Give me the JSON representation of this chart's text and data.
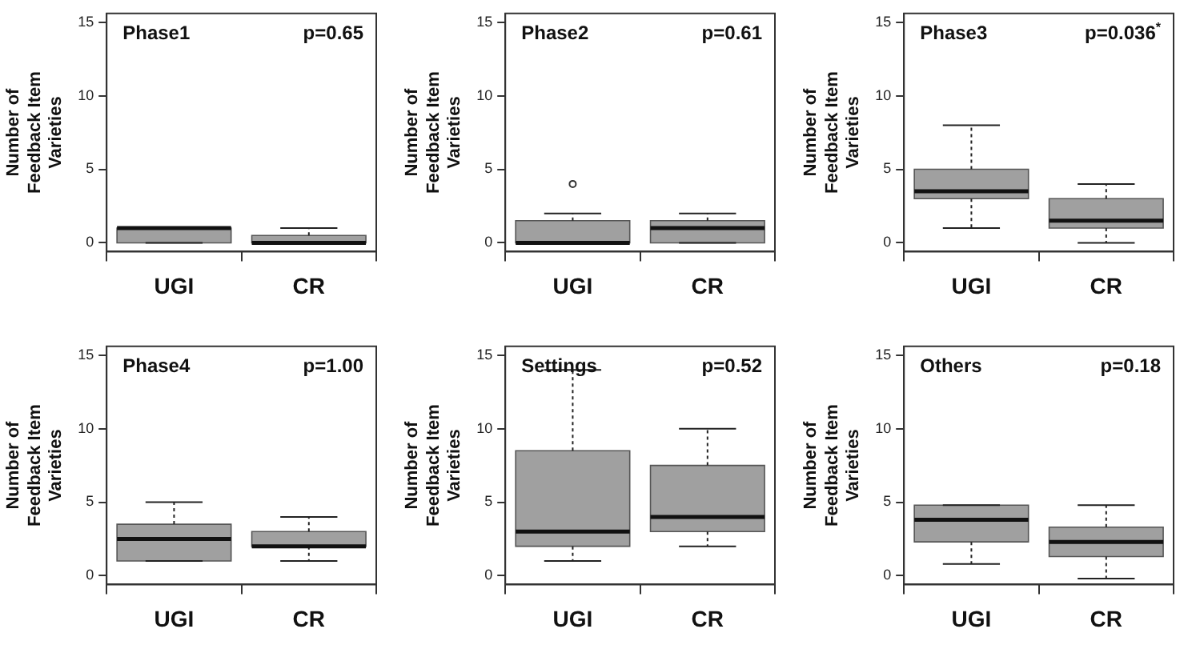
{
  "chart_data": [
    {
      "type": "box",
      "title": "Phase1",
      "annotations": [
        "p=0.65"
      ],
      "ylabel": "Number of Feedback Item Varieties",
      "categories": [
        "UGI",
        "CR"
      ],
      "color": "#a0a0a0",
      "ylim": [
        -0.6,
        15.6
      ],
      "yticks": [
        0,
        5,
        10,
        15
      ],
      "grid": false,
      "boxes": [
        {
          "low": 0,
          "q1": 0,
          "median": 1,
          "q3": 1,
          "high": 1
        },
        {
          "low": 0,
          "q1": 0,
          "median": 0,
          "q3": 0.5,
          "high": 1
        }
      ]
    },
    {
      "type": "box",
      "title": "Phase2",
      "annotations": [
        "p=0.61"
      ],
      "ylabel": "Number of Feedback Item Varieties",
      "categories": [
        "UGI",
        "CR"
      ],
      "color": "#a0a0a0",
      "ylim": [
        -0.6,
        15.6
      ],
      "yticks": [
        0,
        5,
        10,
        15
      ],
      "grid": false,
      "boxes": [
        {
          "low": 0,
          "q1": 0,
          "median": 0,
          "q3": 1.5,
          "high": 2,
          "outliers": [
            4
          ]
        },
        {
          "low": 0,
          "q1": 0,
          "median": 1,
          "q3": 1.5,
          "high": 2
        }
      ]
    },
    {
      "type": "box",
      "title": "Phase3",
      "annotations": [
        "p=0.036$^{*}$"
      ],
      "ylabel": "Number of Feedback Item Varieties",
      "categories": [
        "UGI",
        "CR"
      ],
      "color": "#a0a0a0",
      "ylim": [
        -0.6,
        15.6
      ],
      "yticks": [
        0,
        5,
        10,
        15
      ],
      "grid": false,
      "boxes": [
        {
          "low": 1,
          "q1": 3,
          "median": 3.5,
          "q3": 5,
          "high": 8
        },
        {
          "low": 0,
          "q1": 1,
          "median": 1.5,
          "q3": 3,
          "high": 4
        }
      ]
    },
    {
      "type": "box",
      "title": "Phase4",
      "annotations": [
        "p=1.00"
      ],
      "ylabel": "Number of Feedback Item Varieties",
      "categories": [
        "UGI",
        "CR"
      ],
      "color": "#a0a0a0",
      "ylim": [
        -0.6,
        15.6
      ],
      "yticks": [
        0,
        5,
        10,
        15
      ],
      "grid": false,
      "boxes": [
        {
          "low": 1,
          "q1": 1,
          "median": 2.5,
          "q3": 3.5,
          "high": 5
        },
        {
          "low": 1,
          "q1": 2,
          "median": 2,
          "q3": 3,
          "high": 4
        }
      ]
    },
    {
      "type": "box",
      "title": "Settings",
      "annotations": [
        "p=0.52"
      ],
      "ylabel": "Number of Feedback Item Varieties",
      "categories": [
        "UGI",
        "CR"
      ],
      "color": "#a0a0a0",
      "ylim": [
        -0.6,
        15.6
      ],
      "yticks": [
        0,
        5,
        10,
        15
      ],
      "grid": false,
      "boxes": [
        {
          "low": 1,
          "q1": 2,
          "median": 3,
          "q3": 8.5,
          "high": 14
        },
        {
          "low": 2,
          "q1": 3,
          "median": 4,
          "q3": 7.5,
          "high": 10
        }
      ]
    },
    {
      "type": "box",
      "title": "Others",
      "annotations": [
        "p=0.18"
      ],
      "ylabel": "Number of Feedback Item Varieties",
      "categories": [
        "UGI",
        "CR"
      ],
      "color": "#a0a0a0",
      "ylim": [
        -0.6,
        15.6
      ],
      "yticks": [
        0,
        5,
        10,
        15
      ],
      "grid": false,
      "boxes": [
        {
          "low": 0.8,
          "q1": 2.3,
          "median": 3.8,
          "q3": 4.8,
          "high": 4.8
        },
        {
          "low": -0.2,
          "q1": 1.3,
          "median": 2.3,
          "q3": 3.3,
          "high": 4.8
        }
      ]
    }
  ]
}
